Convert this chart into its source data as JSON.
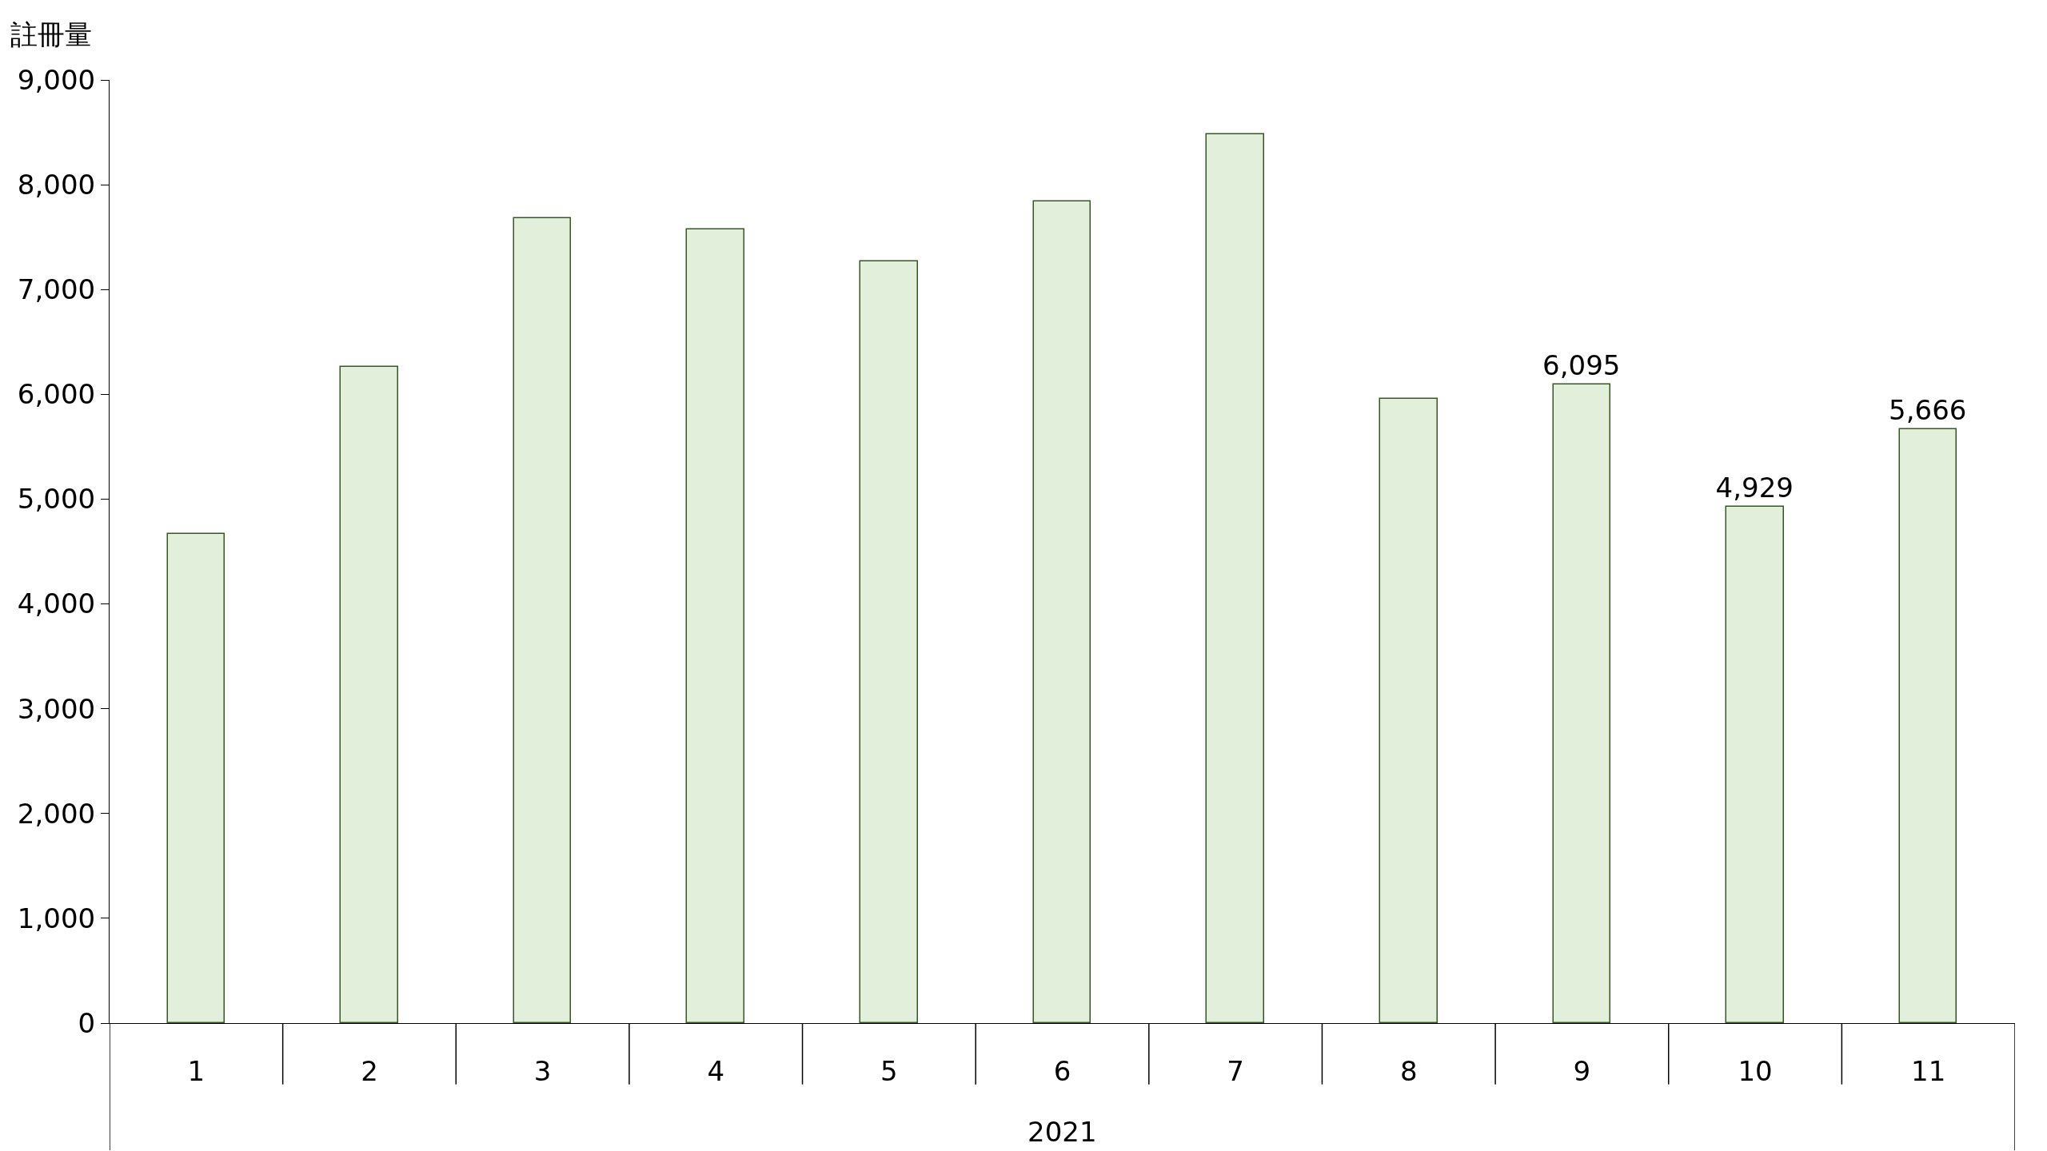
{
  "chart_data": {
    "type": "bar",
    "xlabel": "2021",
    "ylabel": "註冊量",
    "categories": [
      "1",
      "2",
      "3",
      "4",
      "5",
      "6",
      "7",
      "8",
      "9",
      "10",
      "11"
    ],
    "values": [
      4670,
      6260,
      7680,
      7570,
      7270,
      7840,
      8480,
      5960,
      6095,
      4929,
      5666
    ],
    "value_labels": [
      null,
      null,
      null,
      null,
      null,
      null,
      null,
      null,
      "6,095",
      "4,929",
      "5,666"
    ],
    "color": "#e2efda",
    "ylim": [
      0,
      9000
    ],
    "yticks": [
      0,
      {
        "value": 1000,
        "label": "1,000"
      },
      {
        "value": 2000,
        "label": "2,000"
      },
      {
        "value": 3000,
        "label": "3,000"
      },
      {
        "value": 4000,
        "label": "4,000"
      },
      {
        "value": 5000,
        "label": "5,000"
      },
      {
        "value": 6000,
        "label": "6,000"
      },
      {
        "value": 7000,
        "label": "7,000"
      },
      {
        "value": 8000,
        "label": "8,000"
      },
      {
        "value": 9000,
        "label": "9,000"
      }
    ],
    "legend": false
  }
}
